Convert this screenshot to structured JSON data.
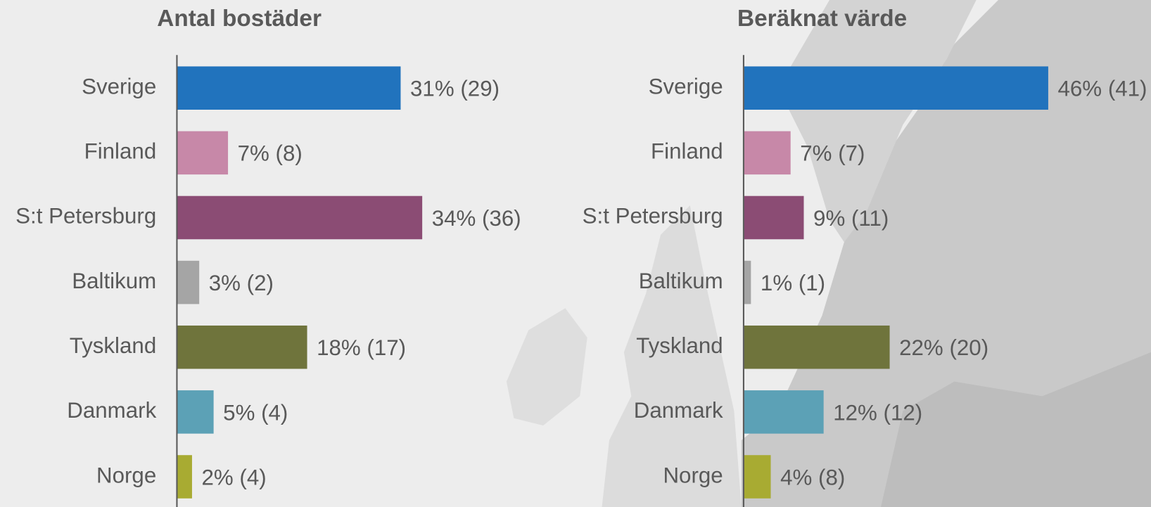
{
  "chart_data": [
    {
      "type": "bar",
      "orientation": "horizontal",
      "title": "Antal bostäder",
      "categories": [
        "Sverige",
        "Finland",
        "S:t Petersburg",
        "Baltikum",
        "Tyskland",
        "Danmark",
        "Norge"
      ],
      "values": [
        31,
        7,
        34,
        3,
        18,
        5,
        2
      ],
      "value_labels": [
        "31% (29)",
        "7% (8)",
        "34% (36)",
        "3% (2)",
        "18% (17)",
        "5% (4)",
        "2% (4)"
      ],
      "colors": [
        "#2173bd",
        "#c788a8",
        "#8b4c74",
        "#a5a5a5",
        "#6f743c",
        "#5ca1b6",
        "#a8ab32"
      ]
    },
    {
      "type": "bar",
      "orientation": "horizontal",
      "title": "Beräknat värde",
      "categories": [
        "Sverige",
        "Finland",
        "S:t Petersburg",
        "Baltikum",
        "Tyskland",
        "Danmark",
        "Norge"
      ],
      "values": [
        46,
        7,
        9,
        1,
        22,
        12,
        4
      ],
      "value_labels": [
        "46% (41)",
        "7% (7)",
        "9% (11)",
        "1% (1)",
        "22% (20)",
        "12% (12)",
        "4% (8)"
      ],
      "colors": [
        "#2173bd",
        "#c788a8",
        "#8b4c74",
        "#a5a5a5",
        "#6f743c",
        "#5ca1b6",
        "#a8ab32"
      ]
    }
  ]
}
